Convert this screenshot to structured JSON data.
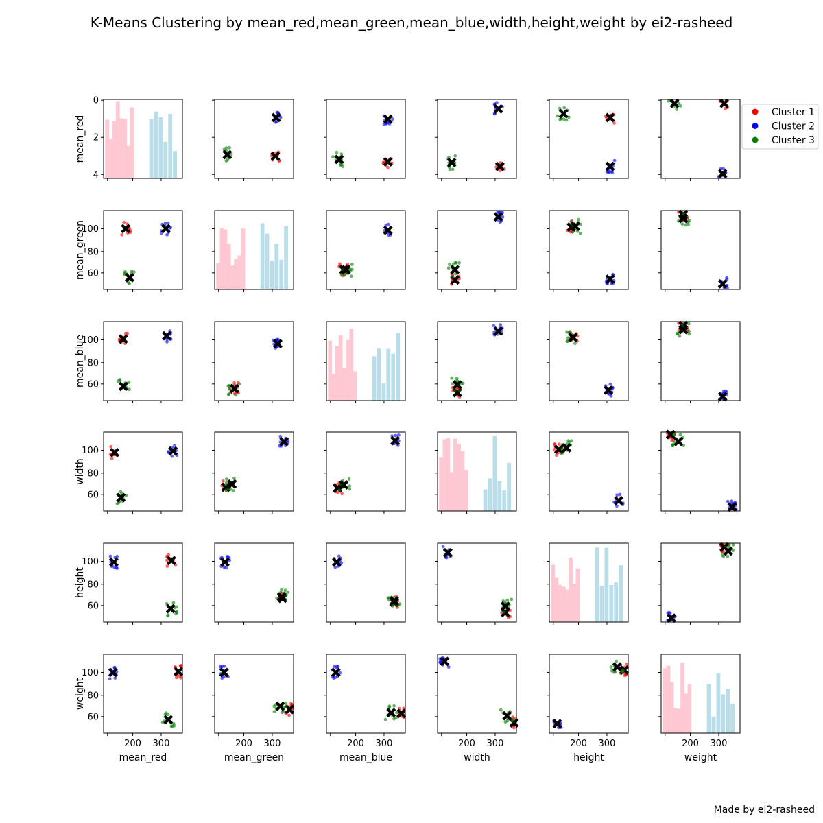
{
  "chart_data": {
    "type": "scatter",
    "title": "K-Means Clustering by mean_red,mean_green,mean_blue,width,height,weight by ei2-rasheed",
    "variables": [
      "mean_red",
      "mean_green",
      "mean_blue",
      "width",
      "height",
      "weight"
    ],
    "grid": false,
    "legend_position": "top-right",
    "left_axis_ticks": {
      "mean_red": [
        "0",
        "2",
        "4"
      ],
      "mean_green": [
        "60",
        "80",
        "100"
      ],
      "mean_blue": [
        "60",
        "80",
        "100"
      ],
      "width": [
        "60",
        "80",
        "100"
      ],
      "height": [
        "60",
        "80",
        "100"
      ],
      "weight": [
        "60",
        "80",
        "100"
      ]
    },
    "bottom_axis_ticks": [
      "200",
      "300"
    ],
    "series": [
      {
        "name": "Cluster 1",
        "color": "#ff0000",
        "hist_color": "#ffc0cb"
      },
      {
        "name": "Cluster 2",
        "color": "#0000ff",
        "hist_color": "#add8e6"
      },
      {
        "name": "Cluster 3",
        "color": "#008000",
        "hist_color": "#ffc0cb"
      }
    ],
    "centroid_marker": {
      "color": "#000000",
      "shape": "X"
    }
  },
  "credit": "Made by ei2-rasheed"
}
